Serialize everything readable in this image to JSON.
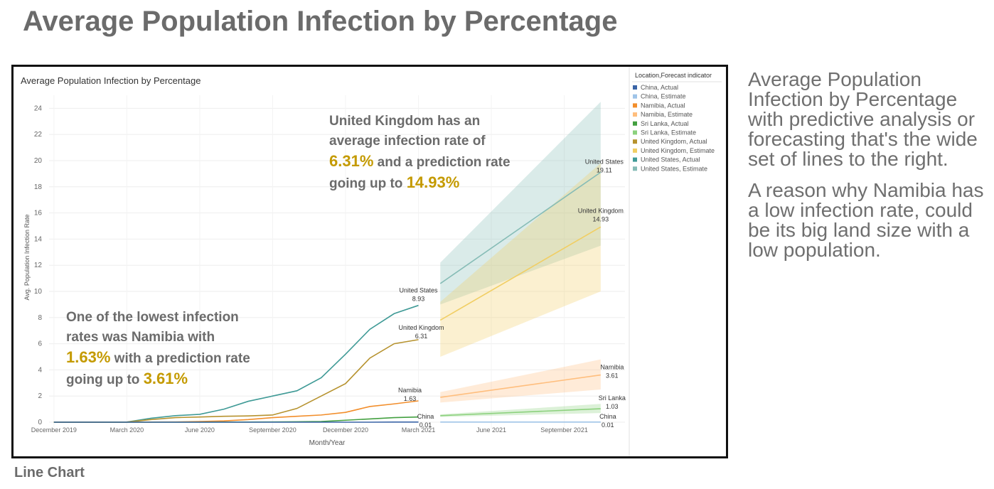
{
  "slide": {
    "title": "Average Population Infection by Percentage",
    "caption": "Line Chart",
    "side_text": [
      "Average Population Infection by Percentage with predictive analysis or forecasting that's the wide set of lines to the right.",
      "A reason why Namibia has a low infection rate, could be its big land size with a low population."
    ]
  },
  "callouts": {
    "uk": {
      "t1": "United Kingdom has an",
      "t2": "average infection rate of",
      "v1": "6.31%",
      "t3": " and a prediction rate",
      "t4": "going up to ",
      "v2": "14.93%"
    },
    "namibia": {
      "t1": "One of the lowest infection",
      "t2": "rates was Namibia with",
      "v1": "1.63%",
      "t3": " with a prediction rate",
      "t4": "going up to ",
      "v2": "3.61%"
    }
  },
  "chart_data": {
    "type": "line",
    "title": "Average Population Infection by Percentage",
    "xlabel": "Month/Year",
    "ylabel": "Avg. Population Infection Rate",
    "ylim": [
      0,
      25
    ],
    "y_ticks": [
      0,
      2,
      4,
      6,
      8,
      10,
      12,
      14,
      16,
      18,
      20,
      22,
      24
    ],
    "x_ticks": [
      "December 2019",
      "March 2020",
      "June 2020",
      "September 2020",
      "December 2020",
      "March 2021",
      "June 2021",
      "September 2021"
    ],
    "grid": true,
    "legend_title": "Location,Forecast indicator",
    "legend_position": "right",
    "legend": [
      {
        "label": "China, Actual",
        "color": "#3a64a6"
      },
      {
        "label": "China, Estimate",
        "color": "#9fc4e8"
      },
      {
        "label": "Namibia, Actual",
        "color": "#f28e2b"
      },
      {
        "label": "Namibia, Estimate",
        "color": "#ffbe7d"
      },
      {
        "label": "Sri Lanka, Actual",
        "color": "#43a040"
      },
      {
        "label": "Sri Lanka, Estimate",
        "color": "#8cd17d"
      },
      {
        "label": "United Kingdom, Actual",
        "color": "#b6922e"
      },
      {
        "label": "United Kingdom, Estimate",
        "color": "#f1ce63"
      },
      {
        "label": "United States, Actual",
        "color": "#3f9a96"
      },
      {
        "label": "United States, Estimate",
        "color": "#86bcb6"
      }
    ],
    "series": [
      {
        "name": "United States, Actual",
        "color": "#3f9a96",
        "x": [
          0,
          1,
          2,
          3,
          4,
          5,
          6,
          7,
          8,
          9,
          10,
          11,
          12,
          13,
          14,
          15
        ],
        "values": [
          0,
          0,
          0,
          0.01,
          0.3,
          0.5,
          0.6,
          1.0,
          1.6,
          2.0,
          2.4,
          3.4,
          5.2,
          7.1,
          8.3,
          8.93
        ]
      },
      {
        "name": "United Kingdom, Actual",
        "color": "#b6922e",
        "x": [
          0,
          1,
          2,
          3,
          4,
          5,
          6,
          7,
          8,
          9,
          10,
          11,
          12,
          13,
          14,
          15
        ],
        "values": [
          0,
          0,
          0,
          0.01,
          0.2,
          0.35,
          0.4,
          0.45,
          0.48,
          0.55,
          1.05,
          2.0,
          2.95,
          4.9,
          6.0,
          6.31
        ]
      },
      {
        "name": "Namibia, Actual",
        "color": "#f28e2b",
        "x": [
          0,
          1,
          2,
          3,
          4,
          5,
          6,
          7,
          8,
          9,
          10,
          11,
          12,
          13,
          14,
          15
        ],
        "values": [
          0,
          0,
          0,
          0,
          0.01,
          0.02,
          0.05,
          0.1,
          0.2,
          0.35,
          0.45,
          0.55,
          0.75,
          1.2,
          1.4,
          1.63
        ]
      },
      {
        "name": "Sri Lanka, Actual",
        "color": "#43a040",
        "x": [
          0,
          1,
          2,
          3,
          4,
          5,
          6,
          7,
          8,
          9,
          10,
          11,
          12,
          13,
          14,
          15
        ],
        "values": [
          0,
          0,
          0,
          0,
          0,
          0,
          0,
          0.01,
          0.01,
          0.02,
          0.03,
          0.05,
          0.15,
          0.25,
          0.35,
          0.4
        ]
      },
      {
        "name": "China, Actual",
        "color": "#3a64a6",
        "x": [
          0,
          1,
          2,
          3,
          4,
          5,
          6,
          7,
          8,
          9,
          10,
          11,
          12,
          13,
          14,
          15
        ],
        "values": [
          0,
          0,
          0,
          0,
          0,
          0,
          0,
          0,
          0,
          0,
          0,
          0,
          0,
          0,
          0.01,
          0.01
        ]
      },
      {
        "name": "United States, Estimate",
        "color": "#86bcb6",
        "x": [
          15.9,
          22.5
        ],
        "values": [
          10.6,
          19.11
        ],
        "band_low": [
          9.0,
          13.5
        ],
        "band_high": [
          12.2,
          24.5
        ]
      },
      {
        "name": "United Kingdom, Estimate",
        "color": "#f1ce63",
        "x": [
          15.9,
          22.5
        ],
        "values": [
          7.8,
          14.93
        ],
        "band_low": [
          5.0,
          10.0
        ],
        "band_high": [
          9.2,
          19.8
        ]
      },
      {
        "name": "Namibia, Estimate",
        "color": "#ffbe7d",
        "x": [
          15.9,
          22.5
        ],
        "values": [
          1.9,
          3.61
        ],
        "band_low": [
          1.5,
          2.5
        ],
        "band_high": [
          2.3,
          4.8
        ]
      },
      {
        "name": "Sri Lanka, Estimate",
        "color": "#8cd17d",
        "x": [
          15.9,
          22.5
        ],
        "values": [
          0.5,
          1.03
        ],
        "band_low": [
          0.4,
          0.7
        ],
        "band_high": [
          0.6,
          1.4
        ]
      },
      {
        "name": "China, Estimate",
        "color": "#9fc4e8",
        "x": [
          15.9,
          22.5
        ],
        "values": [
          0.01,
          0.01
        ]
      }
    ],
    "annotations": [
      {
        "name": "United States",
        "value": "8.93",
        "x": 15,
        "y": 8.93
      },
      {
        "name": "United Kingdom",
        "value": "6.31",
        "x": 15,
        "y": 6.31
      },
      {
        "name": "Namibia",
        "value": "1.63",
        "x": 15,
        "y": 1.63
      },
      {
        "name": "China",
        "value": "0.01",
        "x": 15,
        "y": 0.01
      },
      {
        "name": "United States",
        "value": "19.11",
        "x": 22.5,
        "y": 19.11
      },
      {
        "name": "United Kingdom",
        "value": "14.93",
        "x": 22.5,
        "y": 14.93
      },
      {
        "name": "Namibia",
        "value": "3.61",
        "x": 22.5,
        "y": 3.61
      },
      {
        "name": "Sri Lanka",
        "value": "1.03",
        "x": 22.5,
        "y": 1.03
      },
      {
        "name": "China",
        "value": "0.01",
        "x": 22.5,
        "y": 0.01
      }
    ]
  }
}
